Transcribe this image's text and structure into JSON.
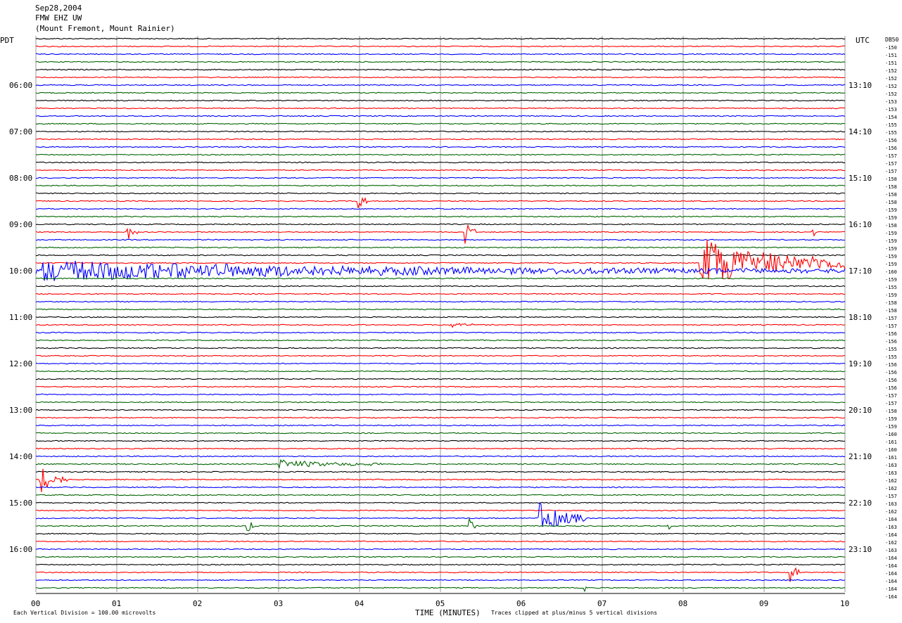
{
  "header": {
    "date": "Sep28,2004",
    "station": "FMW EHZ UW",
    "location": "(Mount Fremont, Mount Rainier)"
  },
  "left_tz": "PDT",
  "right_tz": "UTC",
  "right_unit": "DB50",
  "footer": {
    "scale_text": "Each Vertical Division =  100.00 microvolts",
    "xlabel": "TIME (MINUTES)",
    "clip_text": "Traces clipped at plus/minus 5 vertical divisions"
  },
  "chart_data": {
    "type": "line",
    "title": "Sep28,2004 FMW EHZ UW (Mount Fremont, Mount Rainier)",
    "xlabel": "TIME (MINUTES)",
    "xlim": [
      0,
      10
    ],
    "x_ticks": [
      "00",
      "01",
      "02",
      "03",
      "04",
      "05",
      "06",
      "07",
      "08",
      "09",
      "10"
    ],
    "trace_colors": [
      "#000000",
      "#ff0000",
      "#0000ff",
      "#006400"
    ],
    "traces_per_hour": 6,
    "trace_count": 72,
    "start_left_time": "05:10",
    "left_time_labels": [
      "06:00",
      "07:00",
      "08:00",
      "09:00",
      "10:00",
      "11:00",
      "12:00",
      "13:00",
      "14:00",
      "15:00",
      "16:00"
    ],
    "right_time_labels": [
      "13:10",
      "14:10",
      "15:10",
      "16:10",
      "17:10",
      "18:10",
      "19:10",
      "20:10",
      "21:10",
      "22:10",
      "23:10"
    ],
    "db_values": [
      -150,
      -151,
      -151,
      -152,
      -152,
      -152,
      -152,
      -153,
      -153,
      -154,
      -155,
      -155,
      -156,
      -156,
      -157,
      -157,
      -157,
      -158,
      -158,
      -158,
      -158,
      -159,
      -159,
      -158,
      -159,
      -159,
      -159,
      -159,
      -159,
      -160,
      -159,
      -155,
      -159,
      -158,
      -158,
      -157,
      -157,
      -156,
      -156,
      -155,
      -155,
      -156,
      -156,
      -156,
      -156,
      -157,
      -157,
      -158,
      -159,
      -159,
      -160,
      -161,
      -160,
      -161,
      -163,
      -163,
      -162,
      -162,
      -157,
      -163,
      -162,
      -164,
      -163,
      -164,
      -162,
      -163,
      -164,
      -164,
      -164,
      -164,
      -164,
      -164
    ],
    "events": [
      {
        "trace": 21,
        "minute": 3.98,
        "duration": 0.12,
        "amplitude": 20
      },
      {
        "trace": 25,
        "minute": 1.12,
        "duration": 0.14,
        "amplitude": 16
      },
      {
        "trace": 25,
        "minute": 5.3,
        "duration": 0.14,
        "amplitude": 20
      },
      {
        "trace": 25,
        "minute": 9.57,
        "duration": 0.08,
        "amplitude": 18
      },
      {
        "trace": 29,
        "minute": 8.2,
        "duration": 1.8,
        "amplitude": 40
      },
      {
        "trace": 30,
        "minute": 0.0,
        "duration": 10.0,
        "amplitude": 16
      },
      {
        "trace": 37,
        "minute": 5.1,
        "duration": 0.35,
        "amplitude": 7
      },
      {
        "trace": 55,
        "minute": 3.0,
        "duration": 1.3,
        "amplitude": 7
      },
      {
        "trace": 57,
        "minute": 0.05,
        "duration": 0.35,
        "amplitude": 22
      },
      {
        "trace": 62,
        "minute": 6.2,
        "duration": 0.6,
        "amplitude": 26
      },
      {
        "trace": 63,
        "minute": 5.35,
        "duration": 0.08,
        "amplitude": 18
      },
      {
        "trace": 63,
        "minute": 7.8,
        "duration": 0.06,
        "amplitude": 14
      },
      {
        "trace": 63,
        "minute": 2.6,
        "duration": 0.1,
        "amplitude": 22
      },
      {
        "trace": 69,
        "minute": 9.32,
        "duration": 0.12,
        "amplitude": 22
      },
      {
        "trace": 71,
        "minute": 6.78,
        "duration": 0.03,
        "amplitude": 12
      }
    ]
  }
}
